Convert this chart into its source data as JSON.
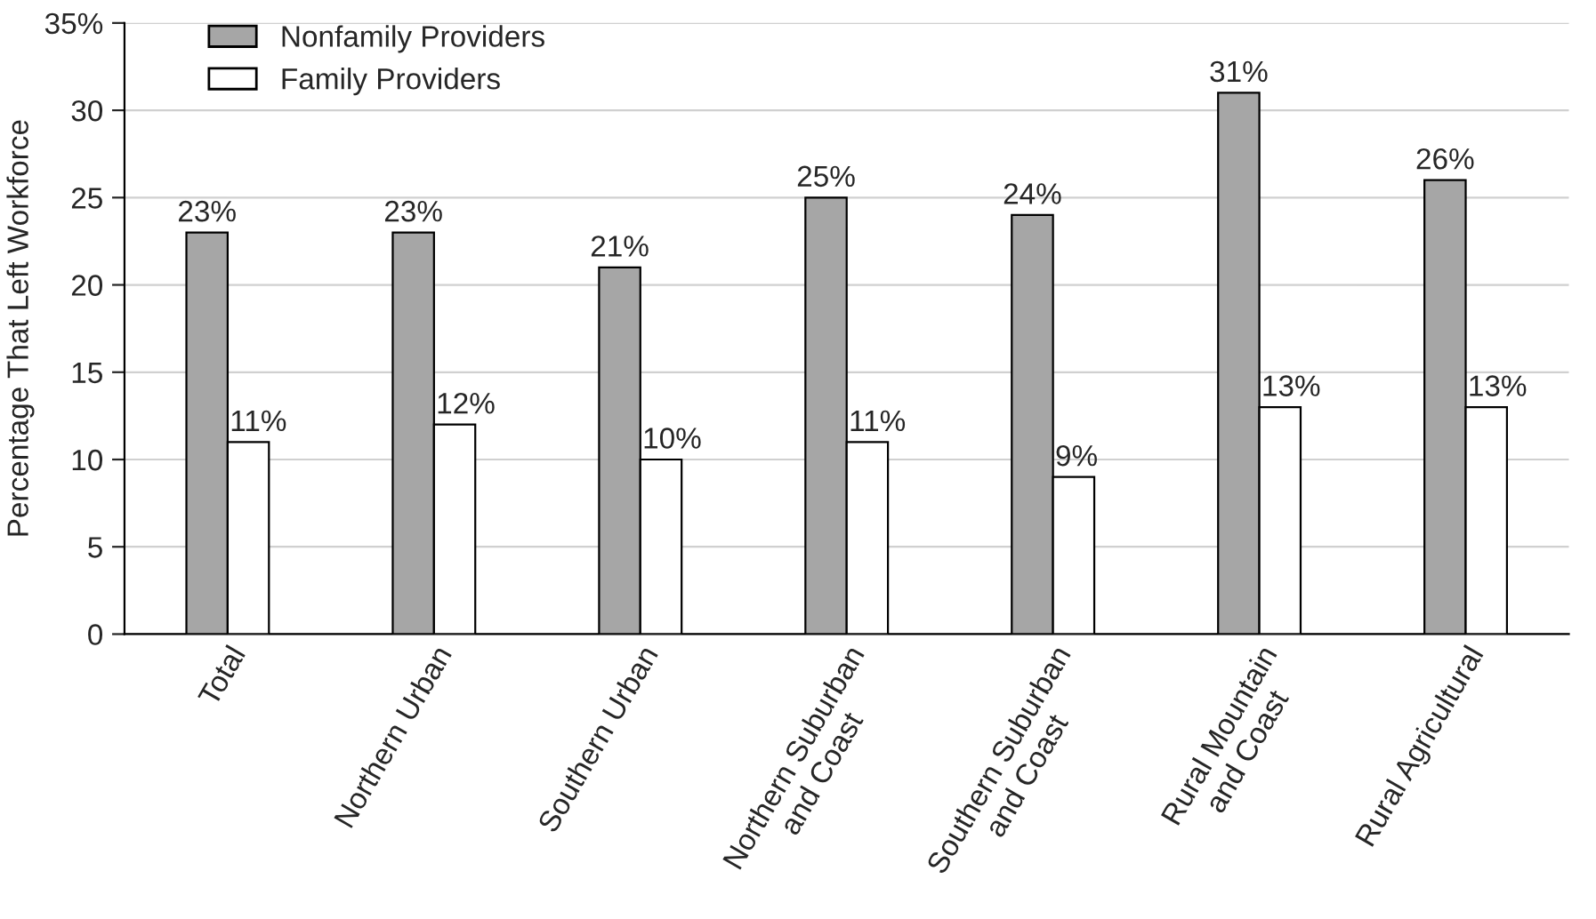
{
  "chart_data": {
    "type": "bar",
    "ylabel": "Percentage That Left Workforce",
    "categories": [
      "Total",
      "Northern Urban",
      "Southern Urban",
      "Northern Suburban\nand Coast",
      "Southern Suburban\nand Coast",
      "Rural Mountain\nand Coast",
      "Rural Agricultural"
    ],
    "series": [
      {
        "name": "Nonfamily Providers",
        "color": "#a6a6a6",
        "values": [
          23,
          23,
          21,
          25,
          24,
          31,
          26
        ],
        "value_labels": [
          "23%",
          "23%",
          "21%",
          "25%",
          "24%",
          "31%",
          "26%"
        ]
      },
      {
        "name": "Family Providers",
        "color": "#ffffff",
        "values": [
          11,
          12,
          10,
          11,
          9,
          13,
          13
        ],
        "value_labels": [
          "11%",
          "12%",
          "10%",
          "11%",
          "9%",
          "13%",
          "13%"
        ]
      }
    ],
    "ylim": [
      0,
      35
    ],
    "yticks": [
      0,
      5,
      10,
      15,
      20,
      25,
      30,
      {
        "value": 35,
        "label": "35%"
      }
    ],
    "grid": "y",
    "legend": "top left"
  }
}
